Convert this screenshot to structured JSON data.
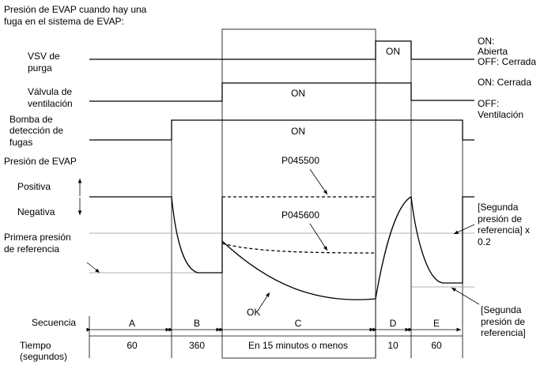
{
  "title": [
    "Presión de EVAP cuando hay una",
    "fuga en el sistema de EVAP:"
  ],
  "signals": [
    {
      "label": [
        "VSV de",
        "purga"
      ],
      "on": "ON",
      "state_on": [
        "ON:",
        "Abierta"
      ],
      "state_off": [
        "OFF: Cerrada"
      ]
    },
    {
      "label": [
        "Válvula de",
        "ventilación"
      ],
      "on": "ON",
      "state_on": [
        "ON: Cerrada"
      ],
      "state_off": [
        "OFF:",
        "Ventilación"
      ]
    },
    {
      "label": [
        "Bomba de",
        "detección de",
        "fugas"
      ],
      "on": "ON"
    }
  ],
  "pressure": {
    "label": "Presión de EVAP",
    "positive": "Positiva",
    "negative": "Negativa",
    "first_reference": [
      "Primera presión",
      "de referencia"
    ],
    "second_reference_x02": [
      "[Segunda",
      "presión de",
      "referencia] x",
      "0.2"
    ],
    "second_reference": [
      "[Segunda",
      "presión de",
      "referencia]"
    ],
    "codes": [
      "P045500",
      "P045600",
      "OK"
    ]
  },
  "sequence": {
    "label": "Secuencia",
    "steps": [
      "A",
      "B",
      "C",
      "D",
      "E"
    ]
  },
  "time": {
    "label": [
      "Tiempo",
      "(segundos)"
    ],
    "values": [
      "60",
      "360",
      "En 15 minutos o menos",
      "10",
      "60"
    ]
  }
}
